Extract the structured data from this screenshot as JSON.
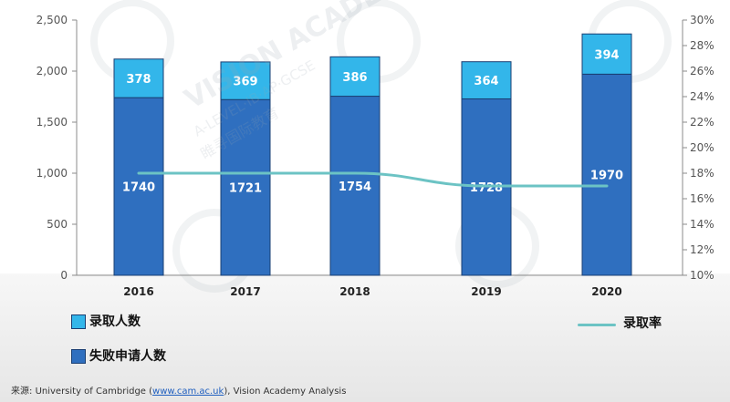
{
  "chart_data": {
    "type": "bar",
    "stacked": true,
    "categories": [
      "2016",
      "2017",
      "2018",
      "2019",
      "2020"
    ],
    "series": [
      {
        "name": "失败申请人数",
        "values": [
          1740,
          1721,
          1754,
          1728,
          1970
        ],
        "color": "#2f6fbf"
      },
      {
        "name": "录取人数",
        "values": [
          378,
          369,
          386,
          364,
          394
        ],
        "color": "#33b6ea"
      },
      {
        "name": "录取率",
        "type": "line",
        "axis": "right",
        "values": [
          18.0,
          18.0,
          18.0,
          17.0,
          17.0
        ],
        "color": "#6cc3c4"
      }
    ],
    "y_left": {
      "min": 0,
      "max": 2500,
      "ticks": [
        "0",
        "500",
        "1,000",
        "1,500",
        "2,000",
        "2,500"
      ]
    },
    "y_right": {
      "min": 10,
      "max": 30,
      "ticks": [
        "10%",
        "12%",
        "14%",
        "16%",
        "18%",
        "20%",
        "22%",
        "24%",
        "26%",
        "28%",
        "30%"
      ]
    },
    "legend_position": "bottom",
    "grid": false
  },
  "watermark": {
    "text": "VISION ACADEMY",
    "subtitle": "A-LEVEL·IB·AP·GCSE",
    "chinese": "睢寻国际教育"
  },
  "source": {
    "label": "来源:",
    "text_before": "University of Cambridge (",
    "link": "www.cam.ac.uk",
    "text_after": "), Vision Academy Analysis"
  },
  "colors": {
    "accent": "#33b6ea",
    "primary": "#2f6fbf",
    "line": "#6cc3c4"
  }
}
